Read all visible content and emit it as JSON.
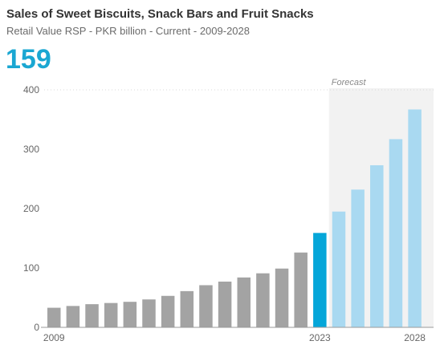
{
  "header": {
    "title": "Sales of Sweet Biscuits, Snack Bars and Fruit Snacks",
    "subtitle": "Retail Value RSP - PKR billion - Current - 2009-2028",
    "headline_value": "159"
  },
  "colors": {
    "historic": "#a3a3a3",
    "current": "#05a6d9",
    "forecast": "#a9d9f1",
    "forecast_band": "#f2f2f2",
    "accent_text": "#1aa7d2"
  },
  "chart_data": {
    "type": "bar",
    "title": "Sales of Sweet Biscuits, Snack Bars and Fruit Snacks",
    "subtitle": "Retail Value RSP - PKR billion - Current - 2009-2028",
    "xlabel": "",
    "ylabel": "",
    "ylim": [
      0,
      400
    ],
    "yticks": [
      0,
      100,
      200,
      300,
      400
    ],
    "grid": false,
    "categories": [
      "2009",
      "2010",
      "2011",
      "2012",
      "2013",
      "2014",
      "2015",
      "2016",
      "2017",
      "2018",
      "2019",
      "2020",
      "2021",
      "2022",
      "2023",
      "2024",
      "2025",
      "2026",
      "2027",
      "2028"
    ],
    "values": [
      33,
      36,
      39,
      41,
      43,
      47,
      53,
      61,
      71,
      77,
      84,
      91,
      99,
      126,
      159,
      195,
      232,
      273,
      317,
      367
    ],
    "x_tick_labels": [
      {
        "category": "2009",
        "text": "2009",
        "highlight": false
      },
      {
        "category": "2023",
        "text": "2023",
        "highlight": true
      },
      {
        "category": "2028",
        "text": "2028",
        "highlight": false
      }
    ],
    "current_year": "2023",
    "forecast_start": "2024",
    "forecast_label": "Forecast"
  }
}
